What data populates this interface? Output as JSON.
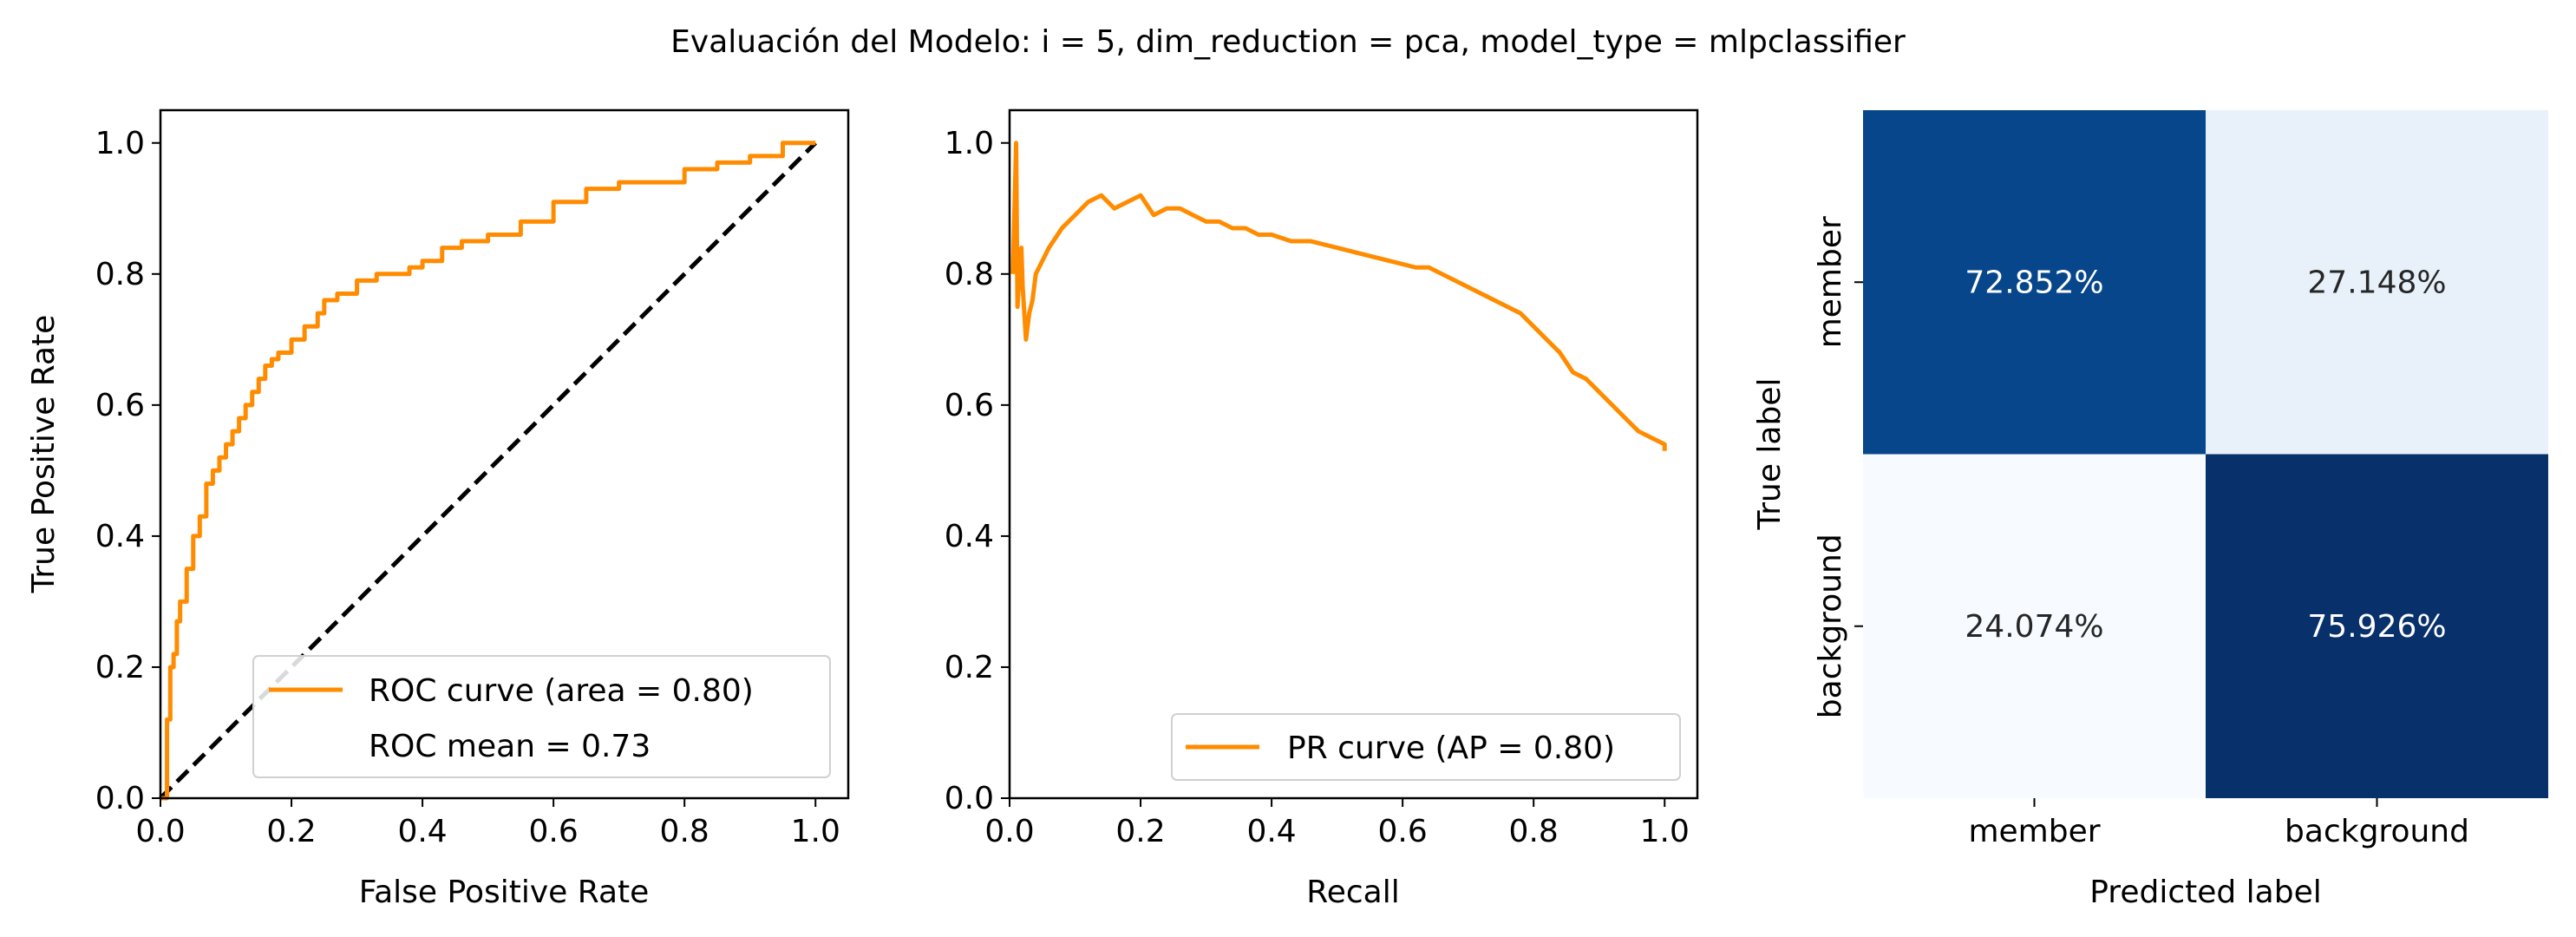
{
  "figure": {
    "suptitle": "Evaluación del Modelo: i = 5, dim_reduction = pca, model_type = mlpclassifier"
  },
  "colors": {
    "curve": "#ff8c00",
    "diagonal": "#000000",
    "cm_dark": "#08306b",
    "cm_mid": "#08468b",
    "cm_light": "#e8f1fa",
    "cm_lightest": "#f7fbff"
  },
  "chart_data": [
    {
      "type": "line",
      "id": "roc",
      "xlabel": "False Positive Rate",
      "ylabel": "True Positive Rate",
      "xlim": [
        0.0,
        1.05
      ],
      "ylim": [
        0.0,
        1.05
      ],
      "xticks": [
        "0.0",
        "0.2",
        "0.4",
        "0.6",
        "0.8",
        "1.0"
      ],
      "yticks": [
        "0.0",
        "0.2",
        "0.4",
        "0.6",
        "0.8",
        "1.0"
      ],
      "legend_position": "lower-right",
      "legend": [
        "ROC curve (area = 0.80)",
        "ROC mean = 0.73"
      ],
      "series": [
        {
          "name": "ROC curve (area = 0.80)",
          "x": [
            0.0,
            0.01,
            0.01,
            0.015,
            0.02,
            0.025,
            0.03,
            0.04,
            0.05,
            0.06,
            0.07,
            0.08,
            0.09,
            0.1,
            0.11,
            0.12,
            0.13,
            0.14,
            0.15,
            0.16,
            0.17,
            0.18,
            0.2,
            0.22,
            0.24,
            0.25,
            0.27,
            0.3,
            0.33,
            0.35,
            0.38,
            0.4,
            0.43,
            0.46,
            0.5,
            0.55,
            0.6,
            0.65,
            0.7,
            0.75,
            0.8,
            0.85,
            0.9,
            0.95,
            1.0
          ],
          "y": [
            0.0,
            0.03,
            0.12,
            0.2,
            0.22,
            0.27,
            0.3,
            0.35,
            0.4,
            0.43,
            0.48,
            0.5,
            0.52,
            0.54,
            0.56,
            0.58,
            0.6,
            0.62,
            0.64,
            0.66,
            0.67,
            0.68,
            0.7,
            0.72,
            0.74,
            0.76,
            0.77,
            0.79,
            0.8,
            0.8,
            0.81,
            0.82,
            0.84,
            0.85,
            0.86,
            0.88,
            0.91,
            0.93,
            0.94,
            0.94,
            0.96,
            0.97,
            0.98,
            1.0,
            1.0
          ]
        },
        {
          "name": "ROC mean = 0.73",
          "x": [
            0.0,
            1.0
          ],
          "y": [
            0.0,
            1.0
          ]
        }
      ]
    },
    {
      "type": "line",
      "id": "pr",
      "xlabel": "Recall",
      "ylabel": "",
      "xlim": [
        0.0,
        1.05
      ],
      "ylim": [
        0.0,
        1.05
      ],
      "xticks": [
        "0.0",
        "0.2",
        "0.4",
        "0.6",
        "0.8",
        "1.0"
      ],
      "yticks": [
        "0.0",
        "0.2",
        "0.4",
        "0.6",
        "0.8",
        "1.0"
      ],
      "legend_position": "lower-right",
      "legend": [
        "PR curve (AP = 0.80)"
      ],
      "series": [
        {
          "name": "PR curve (AP = 0.80)",
          "x": [
            0.005,
            0.01,
            0.012,
            0.015,
            0.018,
            0.02,
            0.025,
            0.03,
            0.035,
            0.04,
            0.05,
            0.06,
            0.08,
            0.1,
            0.12,
            0.14,
            0.16,
            0.18,
            0.2,
            0.22,
            0.24,
            0.26,
            0.28,
            0.3,
            0.32,
            0.34,
            0.36,
            0.38,
            0.4,
            0.43,
            0.46,
            0.5,
            0.54,
            0.58,
            0.62,
            0.64,
            0.66,
            0.7,
            0.74,
            0.78,
            0.8,
            0.82,
            0.84,
            0.86,
            0.88,
            0.9,
            0.92,
            0.94,
            0.96,
            0.98,
            1.0,
            1.0
          ],
          "y": [
            0.8,
            1.0,
            0.75,
            0.8,
            0.84,
            0.78,
            0.7,
            0.74,
            0.76,
            0.8,
            0.82,
            0.84,
            0.87,
            0.89,
            0.91,
            0.92,
            0.9,
            0.91,
            0.92,
            0.89,
            0.9,
            0.9,
            0.89,
            0.88,
            0.88,
            0.87,
            0.87,
            0.86,
            0.86,
            0.85,
            0.85,
            0.84,
            0.83,
            0.82,
            0.81,
            0.81,
            0.8,
            0.78,
            0.76,
            0.74,
            0.72,
            0.7,
            0.68,
            0.65,
            0.64,
            0.62,
            0.6,
            0.58,
            0.56,
            0.55,
            0.54,
            0.53
          ]
        }
      ]
    },
    {
      "type": "heatmap",
      "id": "confusion_matrix",
      "xlabel": "Predicted label",
      "ylabel": "True label",
      "x_categories": [
        "member",
        "background"
      ],
      "y_categories": [
        "member",
        "background"
      ],
      "values": [
        [
          72.852,
          27.148
        ],
        [
          24.074,
          75.926
        ]
      ],
      "labels": [
        [
          "72.852%",
          "27.148%"
        ],
        [
          "24.074%",
          "75.926%"
        ]
      ]
    }
  ]
}
